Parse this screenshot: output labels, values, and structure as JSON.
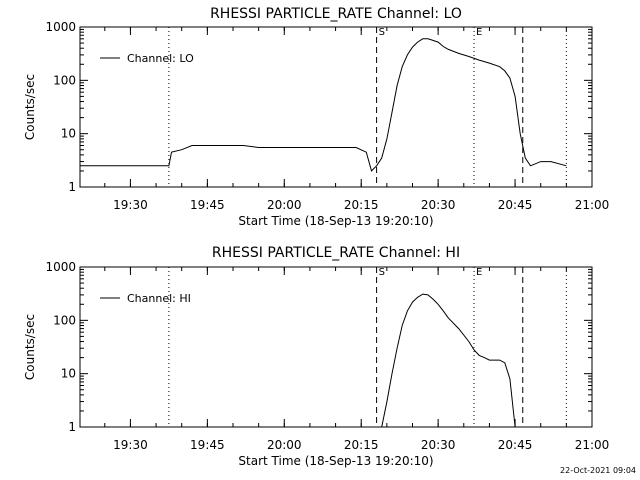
{
  "footer": {
    "timestamp": "22-Oct-2021 09:04"
  },
  "chart_data": [
    {
      "type": "line",
      "title": "RHESSI PARTICLE_RATE Channel: LO",
      "xlabel": "Start Time (18-Sep-13 19:20:10)",
      "ylabel": "Counts/sec",
      "y_scale": "log",
      "xlim": [
        "19:20:10",
        "21:00"
      ],
      "ylim": [
        1,
        1000
      ],
      "x_ticks": [
        "19:30",
        "19:45",
        "20:00",
        "20:15",
        "20:30",
        "20:45",
        "21:00"
      ],
      "y_ticks": [
        "1",
        "10",
        "100",
        "1000"
      ],
      "legend": {
        "position": "top-left",
        "entries": [
          "Channel: LO"
        ]
      },
      "markers": [
        {
          "time": "19:37:30",
          "label": "",
          "style": "dotted"
        },
        {
          "time": "20:18",
          "label": "S",
          "style": "dashed"
        },
        {
          "time": "20:37",
          "label": "E",
          "style": "dotted"
        },
        {
          "time": "20:46:30",
          "label": "",
          "style": "dashed"
        },
        {
          "time": "20:55:00",
          "label": "",
          "style": "dotted"
        }
      ],
      "series": [
        {
          "name": "Channel: LO",
          "x": [
            "19:20:10",
            "19:37:30",
            "19:38",
            "19:40",
            "19:42",
            "19:45",
            "19:48",
            "19:52",
            "19:55",
            "20:00",
            "20:05",
            "20:10",
            "20:14",
            "20:16",
            "20:17",
            "20:18",
            "20:19",
            "20:20",
            "20:21",
            "20:22",
            "20:23",
            "20:24",
            "20:25",
            "20:26",
            "20:27",
            "20:28",
            "20:29",
            "20:30",
            "20:31",
            "20:32",
            "20:34",
            "20:36",
            "20:38",
            "20:40",
            "20:42",
            "20:43",
            "20:44",
            "20:45",
            "20:46",
            "20:47",
            "20:48",
            "20:50",
            "20:52",
            "20:55"
          ],
          "y": [
            2.5,
            2.5,
            4.5,
            5,
            6,
            6,
            6,
            6,
            5.5,
            5.5,
            5.5,
            5.5,
            5.5,
            4.5,
            2,
            2.5,
            3.5,
            8,
            25,
            80,
            180,
            300,
            420,
            520,
            600,
            600,
            560,
            520,
            430,
            380,
            320,
            280,
            240,
            210,
            180,
            150,
            110,
            50,
            10,
            3.5,
            2.5,
            3,
            3,
            2.5
          ]
        }
      ]
    },
    {
      "type": "line",
      "title": "RHESSI PARTICLE_RATE Channel: HI",
      "xlabel": "Start Time (18-Sep-13 19:20:10)",
      "ylabel": "Counts/sec",
      "y_scale": "log",
      "xlim": [
        "19:20:10",
        "21:00"
      ],
      "ylim": [
        1,
        1000
      ],
      "x_ticks": [
        "19:30",
        "19:45",
        "20:00",
        "20:15",
        "20:30",
        "20:45",
        "21:00"
      ],
      "y_ticks": [
        "1",
        "10",
        "100",
        "1000"
      ],
      "legend": {
        "position": "top-left",
        "entries": [
          "Channel: HI"
        ]
      },
      "markers": [
        {
          "time": "19:37:30",
          "label": "",
          "style": "dotted"
        },
        {
          "time": "20:18",
          "label": "S",
          "style": "dashed"
        },
        {
          "time": "20:37",
          "label": "E",
          "style": "dotted"
        },
        {
          "time": "20:46:30",
          "label": "",
          "style": "dashed"
        },
        {
          "time": "20:55:00",
          "label": "",
          "style": "dotted"
        }
      ],
      "series": [
        {
          "name": "Channel: HI",
          "x": [
            "20:19",
            "20:20",
            "20:21",
            "20:22",
            "20:23",
            "20:24",
            "20:25",
            "20:26",
            "20:27",
            "20:28",
            "20:29",
            "20:30",
            "20:31",
            "20:32",
            "20:34",
            "20:36",
            "20:37",
            "20:38",
            "20:39",
            "20:40",
            "20:42",
            "20:43",
            "20:44",
            "20:45"
          ],
          "y": [
            1,
            3,
            10,
            30,
            80,
            150,
            220,
            270,
            310,
            300,
            250,
            200,
            150,
            110,
            70,
            40,
            28,
            22,
            20,
            18,
            18,
            16,
            8,
            1
          ]
        }
      ]
    }
  ]
}
